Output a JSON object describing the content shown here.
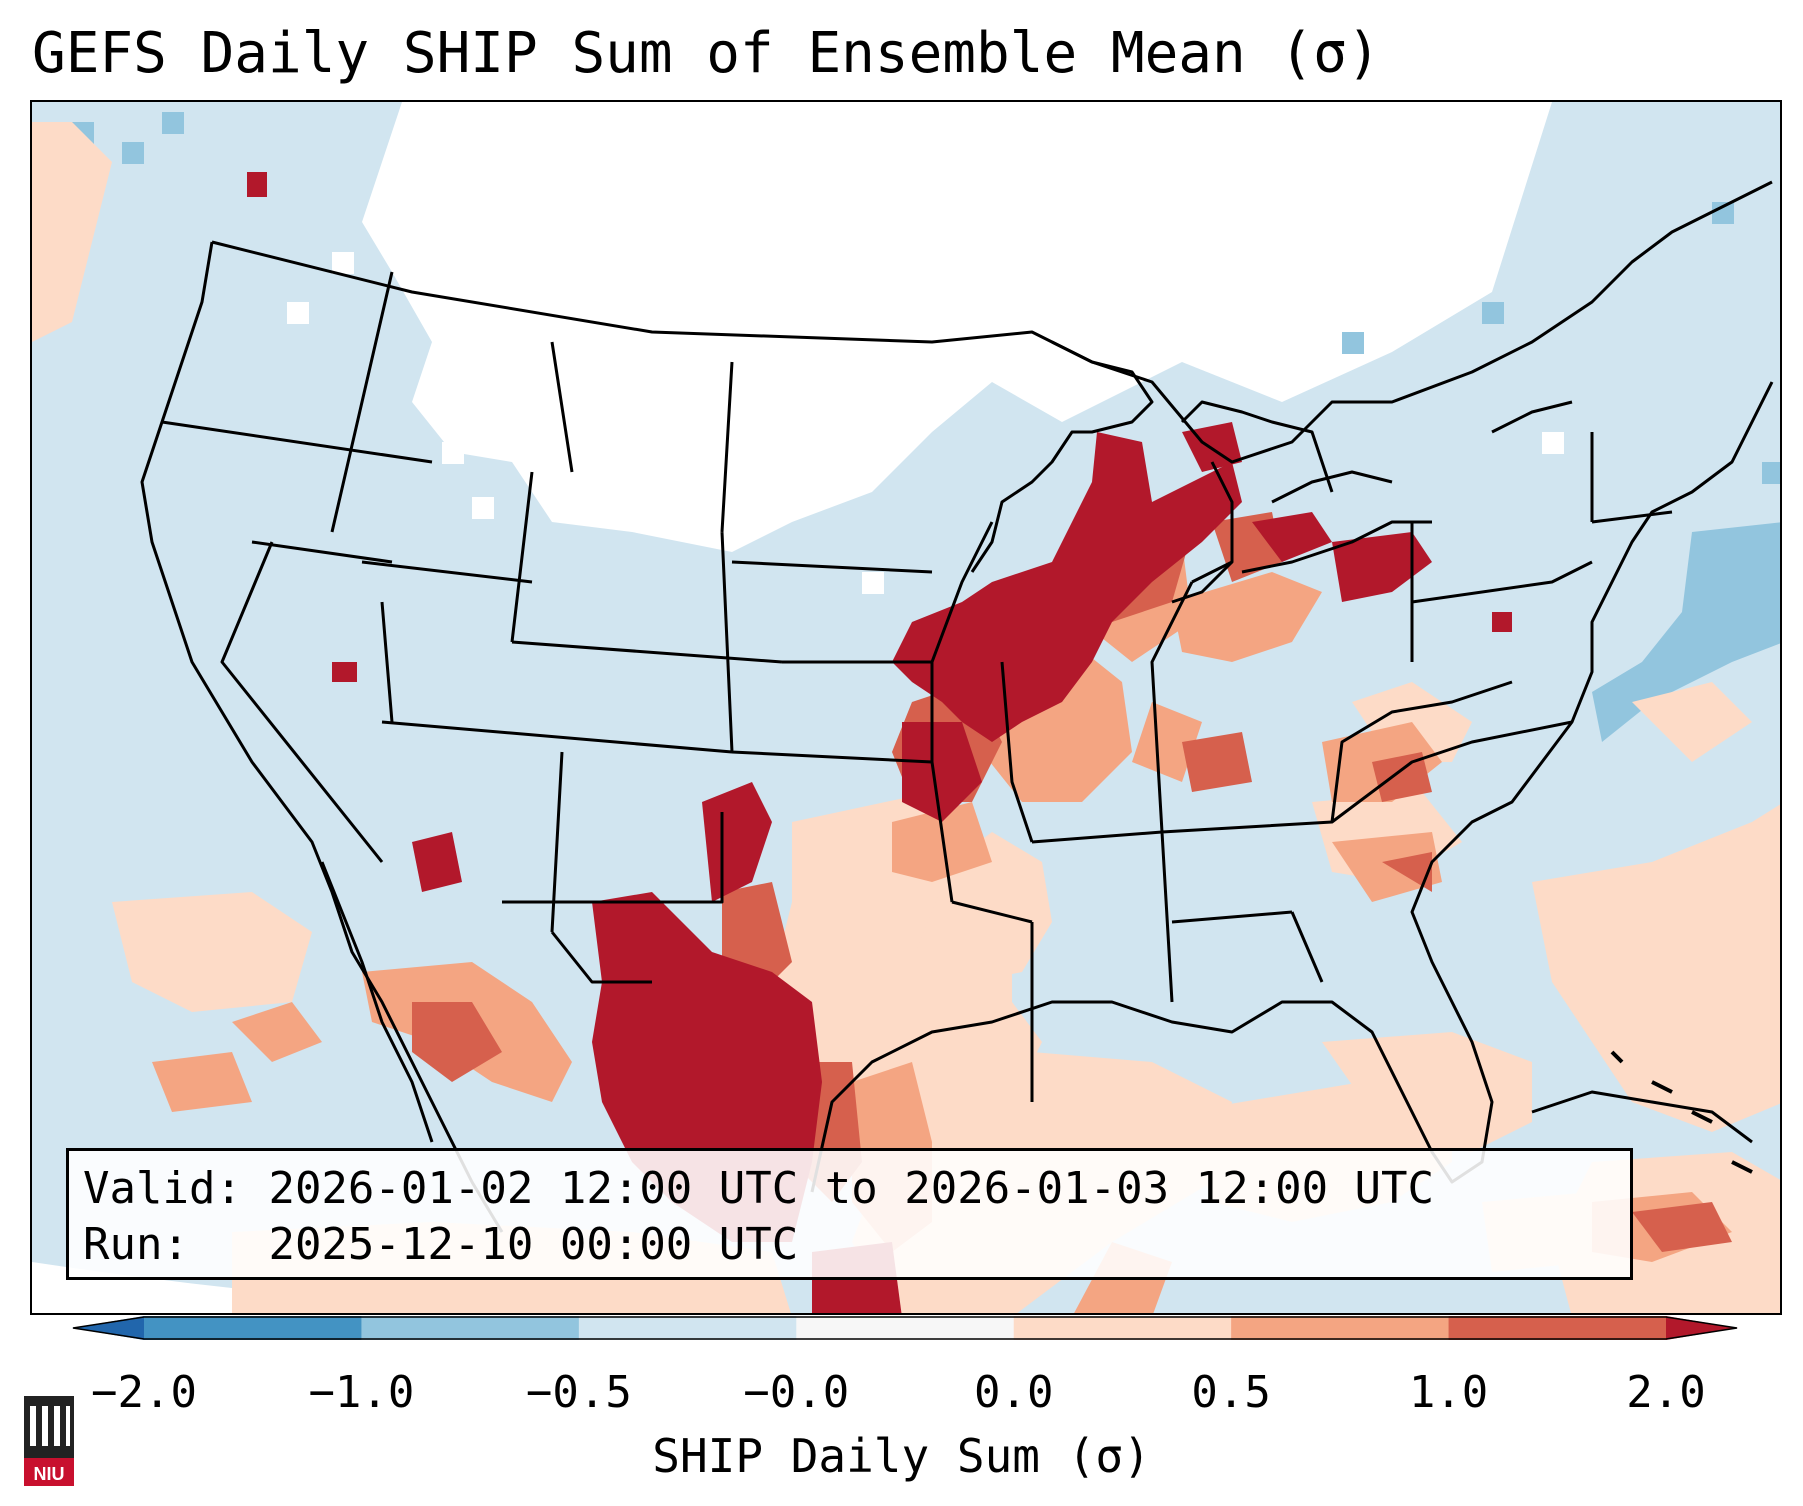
{
  "title": "GEFS Daily SHIP Sum of Ensemble Mean (σ)",
  "info": {
    "valid_label": "Valid:",
    "valid_value": "2026-01-02 12:00 UTC to 2026-01-03 12:00 UTC",
    "run_label": "Run:",
    "run_value": "2025-12-10 00:00 UTC"
  },
  "colorbar": {
    "label": "SHIP Daily Sum (σ)",
    "ticks": [
      "−2.0",
      "−1.0",
      "−0.5",
      "−0.0",
      "0.0",
      "0.5",
      "1.0",
      "2.0"
    ],
    "colors": [
      "#4393c3",
      "#92c5de",
      "#d1e5f0",
      "#f7f7f7",
      "#fddbc7",
      "#f4a582",
      "#d6604d"
    ],
    "extend_low_color": "#2166ac",
    "extend_high_color": "#b2182b"
  },
  "map": {
    "background_color": "#d1e5f0",
    "near_zero_color": "#ffffff",
    "weak_positive_color": "#fddbc7",
    "moderate_positive_color": "#f4a582",
    "strong_positive_color": "#d6604d",
    "extreme_positive_color": "#b2182b",
    "negative_color": "#92c5de"
  },
  "logo": {
    "text": "NIU",
    "color": "#c8102e"
  }
}
